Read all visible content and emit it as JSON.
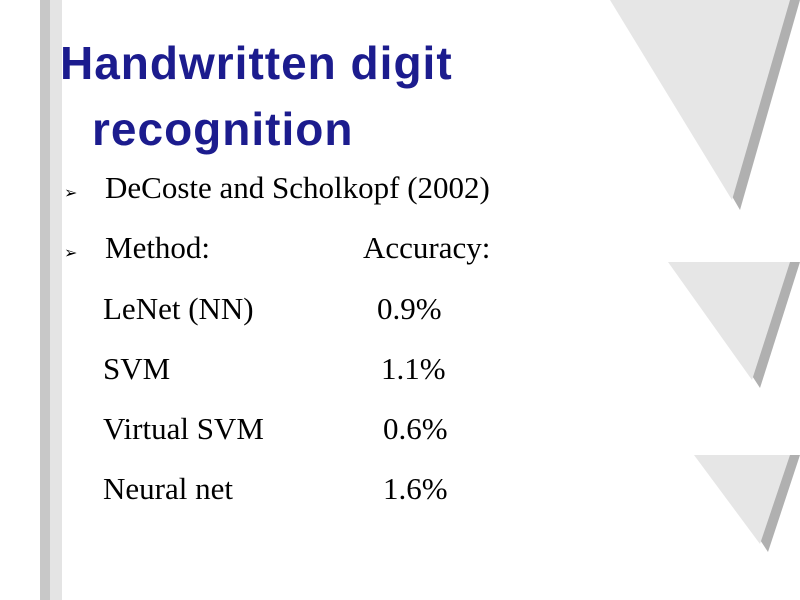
{
  "slide": {
    "title_lines": [
      "Handwritten digit",
      "recognition"
    ],
    "bullets": [
      "DeCoste and Scholkopf (2002)"
    ],
    "table": {
      "header": [
        "Method:",
        "Accuracy:"
      ],
      "rows": [
        [
          "LeNet (NN)",
          "0.9%"
        ],
        [
          "SVM",
          "1.1%"
        ],
        [
          "Virtual SVM",
          "0.6%"
        ],
        [
          "Neural net",
          "1.6%"
        ]
      ]
    }
  }
}
